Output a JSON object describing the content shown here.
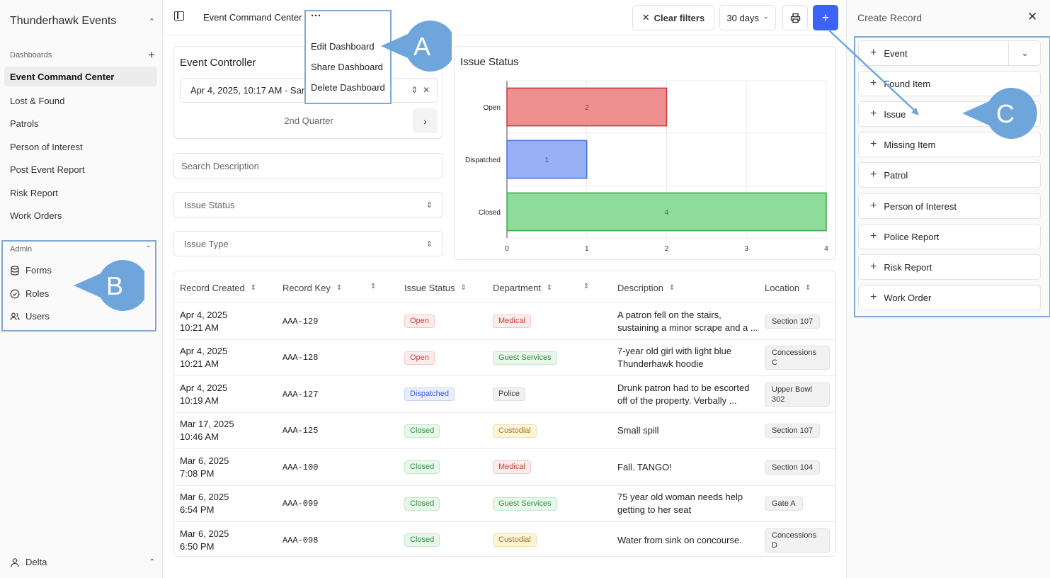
{
  "app": {
    "org_name": "Thunderhawk Events"
  },
  "sidebar": {
    "section_label": "Dashboards",
    "items": [
      {
        "label": "Event Command Center",
        "active": true
      },
      {
        "label": "Lost & Found"
      },
      {
        "label": "Patrols"
      },
      {
        "label": "Person of Interest"
      },
      {
        "label": "Post Event Report"
      },
      {
        "label": "Risk Report"
      },
      {
        "label": "Work Orders"
      }
    ],
    "admin": {
      "label": "Admin",
      "items": [
        {
          "label": "Forms",
          "icon": "database-icon"
        },
        {
          "label": "Roles",
          "icon": "check-circle-icon"
        },
        {
          "label": "Users",
          "icon": "users-icon"
        }
      ]
    },
    "user_name": "Delta"
  },
  "topbar": {
    "breadcrumb": "Event Command Center",
    "more_label": "···",
    "clear_filters": "Clear filters",
    "range": "30 days",
    "add_label": "+"
  },
  "dashboard_menu": {
    "items": [
      "Edit Dashboard",
      "Share Dashboard",
      "Delete Dashboard"
    ]
  },
  "event_controller": {
    "title": "Event Controller",
    "date_value": "Apr 4, 2025, 10:17 AM - San",
    "quarter": "2nd Quarter"
  },
  "filters": {
    "search_placeholder": "Search Description",
    "issue_status": "Issue Status",
    "issue_type": "Issue Type"
  },
  "chart_data": {
    "type": "bar",
    "orientation": "horizontal",
    "title": "Issue Status",
    "categories": [
      "Open",
      "Dispatched",
      "Closed"
    ],
    "values": [
      2,
      1,
      4
    ],
    "xlim": [
      0,
      4
    ],
    "x_ticks": [
      "0",
      "1",
      "2",
      "3",
      "4"
    ],
    "colors": {
      "Open": {
        "fill": "#ee9090",
        "stroke": "#cc3344",
        "label": "#b32d2d"
      },
      "Dispatched": {
        "fill": "#97b0f5",
        "stroke": "#4b6fe0",
        "label": "#2f4fc0"
      },
      "Closed": {
        "fill": "#8edc9a",
        "stroke": "#3fa650",
        "label": "#2a7a38"
      }
    },
    "grid": true
  },
  "table": {
    "headers": {
      "created": "Record Created",
      "key": "Record Key",
      "status": "Issue Status",
      "department": "Department",
      "description": "Description",
      "location": "Location"
    },
    "rows": [
      {
        "date": "Apr 4, 2025",
        "time": "10:21 AM",
        "key": "AAA-129",
        "status": "Open",
        "status_class": "b-open",
        "dept": "Medical",
        "dept_class": "b-medical",
        "desc": "A patron fell on the stairs, sustaining a minor scrape and a ...",
        "loc": "Section 107"
      },
      {
        "date": "Apr 4, 2025",
        "time": "10:21 AM",
        "key": "AAA-128",
        "status": "Open",
        "status_class": "b-open",
        "dept": "Guest Services",
        "dept_class": "b-guest",
        "desc": "7-year old girl with light blue Thunderhawk hoodie",
        "loc": "Concessions C"
      },
      {
        "date": "Apr 4, 2025",
        "time": "10:19 AM",
        "key": "AAA-127",
        "status": "Dispatched",
        "status_class": "b-disp",
        "dept": "Police",
        "dept_class": "b-police",
        "desc": "Drunk patron had to be escorted off of the property. Verbally ...",
        "loc": "Upper Bowl 302"
      },
      {
        "date": "Mar 17, 2025",
        "time": "10:46 AM",
        "key": "AAA-125",
        "status": "Closed",
        "status_class": "b-closed",
        "dept": "Custodial",
        "dept_class": "b-custodial",
        "desc": "Small spill",
        "loc": "Section 107"
      },
      {
        "date": "Mar 6, 2025",
        "time": "7:08 PM",
        "key": "AAA-100",
        "status": "Closed",
        "status_class": "b-closed",
        "dept": "Medical",
        "dept_class": "b-medical",
        "desc": "Fall. TANGO!",
        "loc": "Section 104"
      },
      {
        "date": "Mar 6, 2025",
        "time": "6:54 PM",
        "key": "AAA-099",
        "status": "Closed",
        "status_class": "b-closed",
        "dept": "Guest Services",
        "dept_class": "b-guest",
        "desc": "75 year old woman needs help getting to her seat",
        "loc": "Gate A"
      },
      {
        "date": "Mar 6, 2025",
        "time": "6:50 PM",
        "key": "AAA-098",
        "status": "Closed",
        "status_class": "b-closed",
        "dept": "Custodial",
        "dept_class": "b-custodial",
        "desc": "Water from sink on concourse.",
        "loc": "Concessions D"
      }
    ]
  },
  "create_panel": {
    "title": "Create Record",
    "items": [
      "Event",
      "Found Item",
      "Issue",
      "Missing Item",
      "Patrol",
      "Person of Interest",
      "Police Report",
      "Risk Report",
      "Work Order"
    ]
  },
  "callouts": {
    "a": "A",
    "b": "B",
    "c": "C"
  },
  "colors": {
    "accent": "#3b64f6",
    "callout": "#6ea6dc",
    "highlight_border": "#7fa8d6"
  }
}
